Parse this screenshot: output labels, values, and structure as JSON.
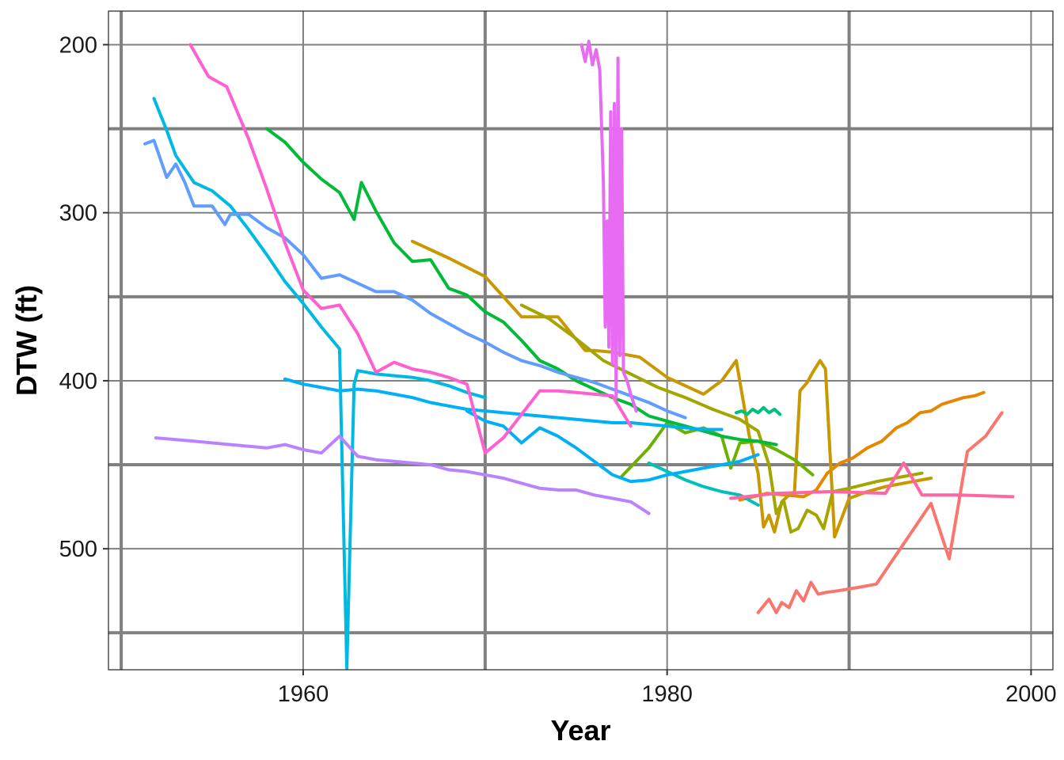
{
  "chart_data": {
    "type": "line",
    "title": "",
    "xlabel": "Year",
    "ylabel": "DTW (ft)",
    "y_reversed": true,
    "xlim": [
      1949.3,
      2001.2
    ],
    "ylim": [
      180,
      572
    ],
    "x_ticks": [
      1960,
      1980,
      2000
    ],
    "y_ticks": [
      200,
      300,
      400,
      500
    ],
    "x_major_grid": [
      1950,
      1970,
      1990
    ],
    "x_minor_grid": [
      1960,
      1980,
      2000
    ],
    "y_major_grid": [
      250,
      350,
      450,
      550
    ],
    "y_minor_grid": [
      200,
      300,
      400,
      500
    ],
    "grid": true,
    "legend": "none",
    "series": [
      {
        "color": "#F8766D",
        "x": [
          1985.0,
          1985.6,
          1986.0,
          1986.3,
          1986.7,
          1987.1,
          1987.5,
          1987.9,
          1988.3,
          1988.7,
          1989.4,
          1990.5,
          1991.5,
          1993.0,
          1994.5,
          1995.5,
          1996.5,
          1997.5,
          1998.4
        ],
        "y": [
          538,
          530,
          538,
          532,
          535,
          525,
          531,
          520,
          527,
          526,
          525,
          523,
          521,
          497,
          473,
          506,
          442,
          433,
          419
        ]
      },
      {
        "color": "#E58700",
        "x": [
          1984.0,
          1985.5,
          1986.5,
          1987.5,
          1988.2,
          1988.8,
          1989.5,
          1990.2,
          1991.0,
          1991.8,
          1992.6,
          1993.2,
          1993.9,
          1994.5,
          1995.1,
          1995.7,
          1996.3,
          1996.9,
          1997.4
        ],
        "y": [
          471,
          467,
          468,
          469,
          465,
          455,
          449,
          446,
          440,
          436,
          428,
          425,
          419,
          418,
          414,
          412,
          410,
          409,
          407
        ]
      },
      {
        "color": "#C99800",
        "x": [
          1966.0,
          1968.0,
          1970.0,
          1972.0,
          1973.0,
          1974.0,
          1975.5,
          1976.0,
          1977.0,
          1978.5,
          1980.0,
          1982.0,
          1983.0,
          1983.8,
          1984.5,
          1985.0,
          1985.3,
          1985.6,
          1985.9,
          1986.3,
          1986.7,
          1987.0,
          1987.3,
          1987.7,
          1988.0,
          1988.4,
          1988.7,
          1989.2,
          1990.0,
          1991.0,
          1992.0,
          1993.0,
          1994.5
        ],
        "y": [
          317,
          327,
          338,
          362,
          362,
          362,
          382,
          382,
          383,
          386,
          398,
          408,
          400,
          388,
          432,
          455,
          487,
          480,
          490,
          472,
          468,
          466,
          406,
          401,
          395,
          388,
          393,
          493,
          470,
          466,
          463,
          461,
          458
        ]
      },
      {
        "color": "#A3A500",
        "x": [
          1972.0,
          1973.5,
          1975.0,
          1976.5,
          1978.0,
          1979.5,
          1981.0,
          1982.5,
          1984.0,
          1985.0,
          1985.6,
          1986.0,
          1986.4,
          1986.8,
          1987.2,
          1987.7,
          1988.2,
          1988.6,
          1989.1,
          1990.0,
          1991.5,
          1993.0,
          1994.0
        ],
        "y": [
          355,
          363,
          375,
          388,
          396,
          404,
          410,
          417,
          423,
          430,
          450,
          479,
          471,
          490,
          488,
          477,
          480,
          488,
          466,
          464,
          460,
          457,
          455
        ]
      },
      {
        "color": "#6BB100",
        "x": [
          1977.5,
          1979.0,
          1980.0,
          1981.0,
          1982.0,
          1983.0,
          1983.5,
          1984.0,
          1985.0,
          1986.0,
          1987.0,
          1988.0
        ],
        "y": [
          457,
          440,
          425,
          431,
          428,
          433,
          452,
          437,
          436,
          441,
          447,
          456
        ]
      },
      {
        "color": "#00BA38",
        "x": [
          1958.0,
          1959.0,
          1960.0,
          1961.0,
          1962.0,
          1962.8,
          1963.2,
          1964.0,
          1965.0,
          1966.0,
          1967.0,
          1968.0,
          1969.0,
          1970.0,
          1971.0,
          1972.0,
          1973.0,
          1974.0,
          1975.0,
          1976.0,
          1977.0,
          1978.0,
          1979.0,
          1980.0,
          1981.0,
          1982.0,
          1983.0,
          1984.0,
          1985.0,
          1986.0
        ],
        "y": [
          250,
          258,
          270,
          280,
          288,
          304,
          282,
          299,
          318,
          329,
          328,
          345,
          349,
          359,
          365,
          376,
          388,
          393,
          400,
          405,
          410,
          414,
          421,
          424,
          427,
          430,
          433,
          435,
          436,
          438
        ]
      },
      {
        "color": "#00BF7D",
        "x": [
          1983.8,
          1984.1,
          1984.4,
          1984.7,
          1985.0,
          1985.3,
          1985.6,
          1985.9,
          1986.2
        ],
        "y": [
          419,
          418,
          420,
          417,
          419,
          416,
          419,
          417,
          420
        ]
      },
      {
        "color": "#00C0B8",
        "x": [
          1979.0,
          1980.0,
          1981.0,
          1982.0,
          1983.0,
          1984.0,
          1985.0
        ],
        "y": [
          449,
          454,
          459,
          463,
          466,
          468,
          474
        ]
      },
      {
        "color": "#00B0F6",
        "x": [
          1959.0,
          1960.0,
          1961.0,
          1962.0,
          1963.0,
          1964.0,
          1965.0,
          1966.0,
          1967.0,
          1968.0,
          1969.0,
          1970.0,
          1971.0,
          1972.0,
          1973.0,
          1974.0,
          1975.0,
          1976.0,
          1977.0,
          1978.0,
          1979.0,
          1980.0,
          1981.0,
          1982.0,
          1983.0
        ],
        "y": [
          399,
          402,
          404,
          406,
          405,
          406,
          408,
          410,
          413,
          415,
          417,
          418,
          419,
          420,
          421,
          422,
          423,
          424,
          425,
          425,
          426,
          427,
          428,
          429,
          429
        ]
      },
      {
        "color": "#00B0F6",
        "x": [
          1969.0,
          1970.0,
          1971.0,
          1972.0,
          1973.0,
          1974.0,
          1975.0,
          1976.0,
          1977.0,
          1978.0,
          1979.0,
          1980.0,
          1981.0,
          1982.0,
          1983.0,
          1984.0,
          1985.0
        ],
        "y": [
          418,
          424,
          427,
          437,
          428,
          433,
          440,
          448,
          456,
          460,
          459,
          456,
          454,
          452,
          450,
          448,
          444
        ]
      },
      {
        "color": "#00B9E3",
        "x": [
          1951.8,
          1952.5,
          1953.0,
          1954.0,
          1955.0,
          1956.0,
          1957.0,
          1958.0,
          1959.0,
          1960.0,
          1961.0,
          1962.0,
          1962.4,
          1962.8,
          1963.0,
          1964.0,
          1965.0,
          1966.0,
          1967.0,
          1968.0,
          1969.0,
          1970.0
        ],
        "y": [
          232,
          251,
          266,
          282,
          287,
          296,
          310,
          325,
          341,
          354,
          368,
          381,
          571,
          402,
          394,
          396,
          397,
          398,
          400,
          403,
          407,
          410
        ]
      },
      {
        "color": "#619CFF",
        "x": [
          1951.3,
          1951.8,
          1952.5,
          1953.0,
          1953.5,
          1954.0,
          1955.0,
          1955.7,
          1956.0,
          1957.0,
          1958.0,
          1959.0,
          1960.0,
          1961.0,
          1962.0,
          1963.0,
          1964.0,
          1965.0,
          1966.0,
          1967.0,
          1968.0,
          1969.0,
          1970.0,
          1971.0,
          1972.0,
          1973.0,
          1974.0,
          1975.0,
          1976.0,
          1977.0,
          1978.0,
          1979.0,
          1980.0,
          1981.0
        ],
        "y": [
          259,
          257,
          279,
          271,
          282,
          296,
          296,
          307,
          301,
          301,
          309,
          315,
          325,
          339,
          337,
          342,
          347,
          347,
          352,
          360,
          366,
          372,
          377,
          383,
          388,
          391,
          395,
          398,
          401,
          405,
          409,
          413,
          418,
          422
        ]
      },
      {
        "color": "#B983FF",
        "x": [
          1951.9,
          1954.0,
          1956.0,
          1958.0,
          1959.0,
          1960.0,
          1961.0,
          1962.0,
          1963.0,
          1964.0,
          1965.0,
          1966.0,
          1967.0,
          1968.0,
          1969.0,
          1970.0,
          1971.0,
          1972.0,
          1973.0,
          1974.0,
          1975.0,
          1976.0,
          1977.0,
          1978.0,
          1979.0
        ],
        "y": [
          434,
          436,
          438,
          440,
          438,
          441,
          443,
          433,
          445,
          447,
          448,
          449,
          450,
          453,
          454,
          456,
          458,
          461,
          464,
          465,
          465,
          468,
          470,
          472,
          479
        ]
      },
      {
        "color": "#E76BF3",
        "x": [
          1975.3,
          1975.5,
          1975.7,
          1975.9,
          1976.1,
          1976.3,
          1976.5,
          1976.6,
          1976.7,
          1976.8,
          1976.9,
          1977.0,
          1977.1,
          1977.2,
          1977.3,
          1977.4,
          1977.5,
          1977.6,
          1977.8,
          1978.0,
          1978.3
        ],
        "y": [
          200,
          210,
          198,
          212,
          203,
          215,
          282,
          368,
          305,
          380,
          240,
          390,
          235,
          410,
          208,
          385,
          250,
          395,
          400,
          408,
          418
        ]
      },
      {
        "color": "#FD61D1",
        "x": [
          1953.8,
          1954.8,
          1955.8,
          1957.0,
          1958.0,
          1959.0,
          1960.0,
          1961.0,
          1962.0,
          1963.0,
          1964.0,
          1965.0,
          1966.0,
          1967.0,
          1968.0,
          1969.0,
          1970.0,
          1971.0,
          1972.0,
          1973.0,
          1974.0,
          1975.0,
          1976.0,
          1977.0,
          1978.0
        ],
        "y": [
          200,
          219,
          225,
          256,
          286,
          318,
          346,
          357,
          355,
          372,
          395,
          389,
          393,
          395,
          398,
          402,
          443,
          434,
          420,
          406,
          406,
          407,
          408,
          409,
          427
        ]
      },
      {
        "color": "#FF67A4",
        "x": [
          1983.5,
          1986.0,
          1989.0,
          1992.0,
          1993.0,
          1994.0,
          1996.0,
          1999.0
        ],
        "y": [
          470,
          467,
          466,
          467,
          449,
          468,
          468,
          469
        ]
      }
    ]
  }
}
